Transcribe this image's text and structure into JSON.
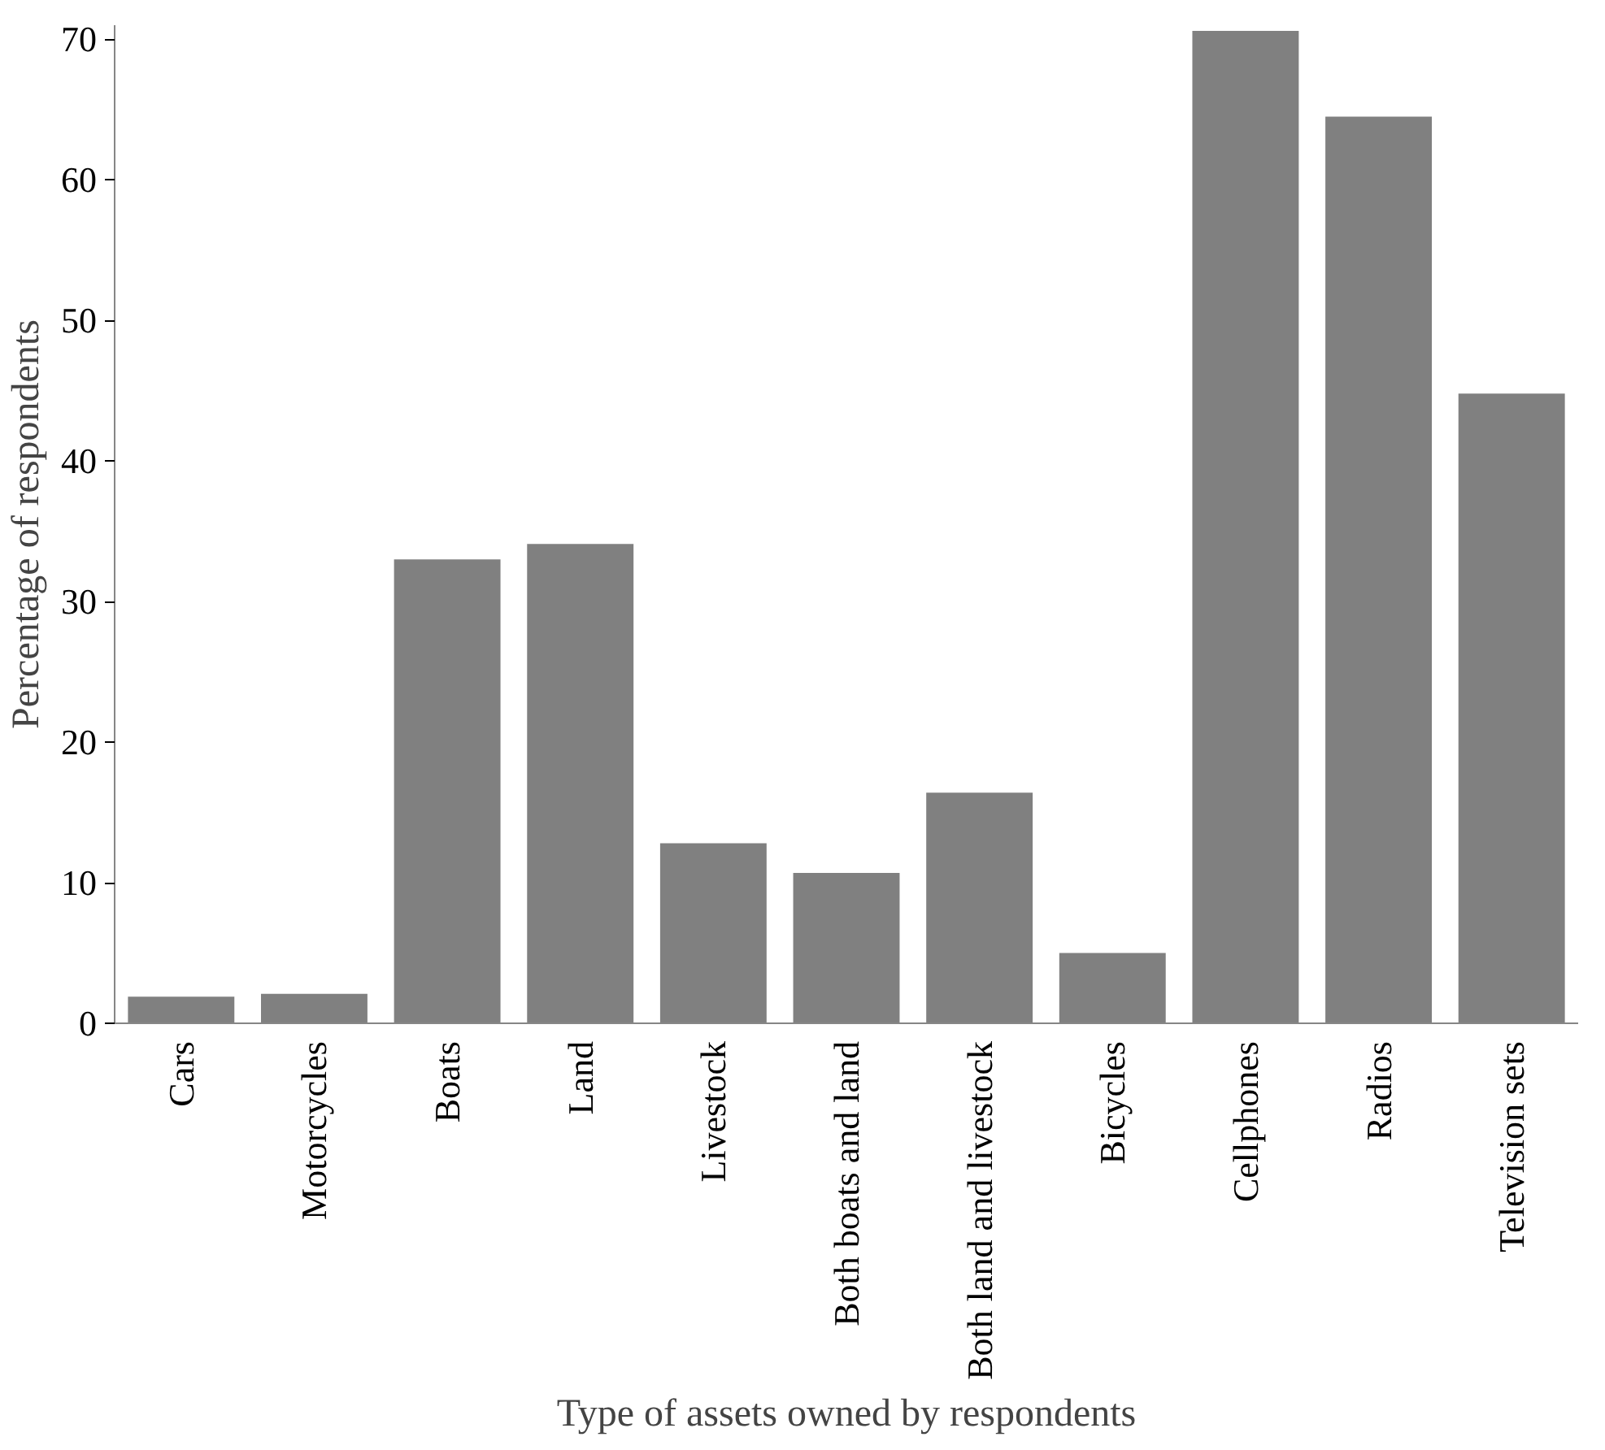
{
  "chart_data": {
    "type": "bar",
    "xlabel": "Type of assets owned by respondents",
    "ylabel": "Percentage of respondents",
    "categories": [
      "Cars",
      "Motorcycles",
      "Boats",
      "Land",
      "Livestock",
      "Both boats and land",
      "Both land and livestock",
      "Bicycles",
      "Cellphones",
      "Radios",
      "Television sets"
    ],
    "values": [
      1.9,
      2.1,
      33.0,
      34.1,
      12.8,
      10.7,
      16.4,
      5.0,
      70.6,
      64.5,
      44.8
    ],
    "color": "#808080",
    "ylim": [
      0,
      71
    ],
    "yticks": [
      0,
      10,
      20,
      30,
      40,
      50,
      60,
      70
    ],
    "grid": false
  }
}
